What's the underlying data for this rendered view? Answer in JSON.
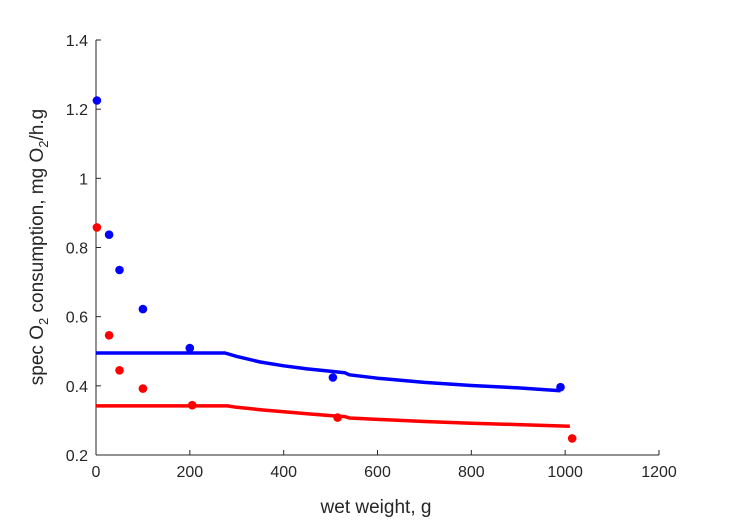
{
  "chart_data": {
    "type": "scatter",
    "title": "",
    "xlabel": "wet weight, g",
    "ylabel": {
      "prefix": "spec O",
      "sub1": "2",
      "middle": " consumption, mg O",
      "sub2": "2",
      "suffix": "/h.g"
    },
    "xlim": [
      0,
      1200
    ],
    "ylim": [
      0.2,
      1.4
    ],
    "xticks": [
      0,
      200,
      400,
      600,
      800,
      1000,
      1200
    ],
    "yticks": [
      0.2,
      0.4,
      0.6,
      0.8,
      1,
      1.2,
      1.4
    ],
    "xtick_labels": [
      "0",
      "200",
      "400",
      "600",
      "800",
      "1000",
      "1200"
    ],
    "ytick_labels": [
      "0.2",
      "0.4",
      "0.6",
      "0.8",
      "1",
      "1.2",
      "1.4"
    ],
    "grid": false,
    "series": [
      {
        "color": "#0000ff",
        "kind": "points",
        "x": [
          2,
          28,
          50,
          100,
          200,
          505,
          990
        ],
        "y": [
          1.225,
          0.837,
          0.735,
          0.622,
          0.509,
          0.424,
          0.396
        ]
      },
      {
        "color": "#ff0000",
        "kind": "points",
        "x": [
          2,
          28,
          50,
          100,
          205,
          515,
          1015
        ],
        "y": [
          0.858,
          0.546,
          0.445,
          0.392,
          0.344,
          0.308,
          0.248
        ]
      },
      {
        "color": "#0000ff",
        "kind": "line",
        "x": [
          0,
          100,
          200,
          275,
          300,
          350,
          400,
          450,
          500,
          530,
          540,
          600,
          700,
          800,
          900,
          990
        ],
        "y": [
          0.495,
          0.495,
          0.495,
          0.495,
          0.485,
          0.469,
          0.458,
          0.449,
          0.442,
          0.438,
          0.432,
          0.422,
          0.41,
          0.401,
          0.394,
          0.386
        ]
      },
      {
        "color": "#ff0000",
        "kind": "line",
        "x": [
          0,
          100,
          200,
          280,
          300,
          350,
          400,
          450,
          500,
          530,
          540,
          600,
          700,
          800,
          900,
          1010
        ],
        "y": [
          0.342,
          0.342,
          0.342,
          0.342,
          0.338,
          0.331,
          0.325,
          0.319,
          0.314,
          0.311,
          0.307,
          0.303,
          0.297,
          0.292,
          0.288,
          0.283
        ]
      }
    ]
  }
}
